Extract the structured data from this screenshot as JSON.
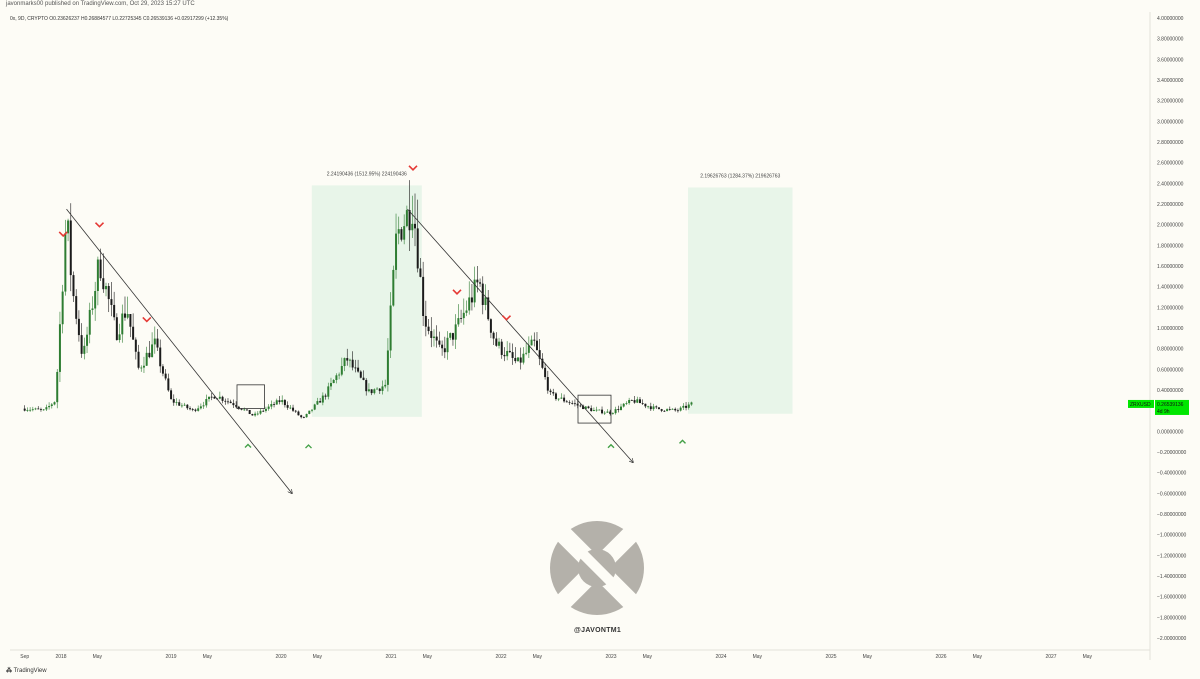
{
  "header": {
    "published": "javonmarks00 published on TradingView.com, Oct 29, 2023 15:27 UTC",
    "legend": "0x, 9D, CRYPTO  O0.23626237  H0.26884577  L0.22725345  C0.26539136  +0.02917299 (+12.35%)"
  },
  "footer": {
    "brand": "TradingView"
  },
  "watermark": {
    "handle": "@JAVONTM1"
  },
  "colors": {
    "up": "#2e7d32",
    "down": "#1b1b1b",
    "marker_down": "#e53935",
    "marker_up": "#43a047",
    "projection_fill": "#e8f5e9",
    "price_tag": "#00e600"
  },
  "chart_data": {
    "type": "candlestick",
    "title": "",
    "xlabel": "",
    "ylabel": "",
    "ylim": [
      -2.0,
      4.0
    ],
    "grid": false,
    "y_ticks": [
      "4.00000000",
      "3.80000000",
      "3.60000000",
      "3.40000000",
      "3.20000000",
      "3.00000000",
      "2.80000000",
      "2.60000000",
      "2.40000000",
      "2.20000000",
      "2.00000000",
      "1.80000000",
      "1.60000000",
      "1.40000000",
      "1.20000000",
      "1.00000000",
      "0.80000000",
      "0.60000000",
      "0.40000000",
      "0.20000000",
      "0.00000000",
      "−0.20000000",
      "−0.40000000",
      "−0.60000000",
      "−0.80000000",
      "−1.00000000",
      "−1.20000000",
      "−1.40000000",
      "−1.60000000",
      "−1.80000000",
      "−2.00000000"
    ],
    "x_ticks": [
      {
        "label": "Sep",
        "t": 2017.67
      },
      {
        "label": "2018",
        "t": 2018.0
      },
      {
        "label": "May",
        "t": 2018.33
      },
      {
        "label": "2019",
        "t": 2019.0
      },
      {
        "label": "May",
        "t": 2019.33
      },
      {
        "label": "2020",
        "t": 2020.0
      },
      {
        "label": "May",
        "t": 2020.33
      },
      {
        "label": "2021",
        "t": 2021.0
      },
      {
        "label": "May",
        "t": 2021.33
      },
      {
        "label": "2022",
        "t": 2022.0
      },
      {
        "label": "May",
        "t": 2022.33
      },
      {
        "label": "2023",
        "t": 2023.0
      },
      {
        "label": "May",
        "t": 2023.33
      },
      {
        "label": "2024",
        "t": 2024.0
      },
      {
        "label": "May",
        "t": 2024.33
      },
      {
        "label": "2025",
        "t": 2025.0
      },
      {
        "label": "May",
        "t": 2025.33
      },
      {
        "label": "2026",
        "t": 2026.0
      },
      {
        "label": "May",
        "t": 2026.33
      },
      {
        "label": "2027",
        "t": 2027.0
      },
      {
        "label": "May",
        "t": 2027.33
      }
    ],
    "price_path": [
      {
        "t": 2017.67,
        "p": 0.22
      },
      {
        "t": 2017.85,
        "p": 0.2
      },
      {
        "t": 2017.95,
        "p": 0.3
      },
      {
        "t": 2018.05,
        "p": 2.1
      },
      {
        "t": 2018.1,
        "p": 1.4
      },
      {
        "t": 2018.2,
        "p": 0.7
      },
      {
        "t": 2018.35,
        "p": 1.65
      },
      {
        "t": 2018.5,
        "p": 0.95
      },
      {
        "t": 2018.6,
        "p": 1.2
      },
      {
        "t": 2018.7,
        "p": 0.6
      },
      {
        "t": 2018.85,
        "p": 0.85
      },
      {
        "t": 2019.0,
        "p": 0.3
      },
      {
        "t": 2019.2,
        "p": 0.2
      },
      {
        "t": 2019.4,
        "p": 0.35
      },
      {
        "t": 2019.6,
        "p": 0.25
      },
      {
        "t": 2019.75,
        "p": 0.15
      },
      {
        "t": 2020.0,
        "p": 0.3
      },
      {
        "t": 2020.2,
        "p": 0.12
      },
      {
        "t": 2020.4,
        "p": 0.35
      },
      {
        "t": 2020.6,
        "p": 0.7
      },
      {
        "t": 2020.8,
        "p": 0.38
      },
      {
        "t": 2020.95,
        "p": 0.45
      },
      {
        "t": 2021.05,
        "p": 1.9
      },
      {
        "t": 2021.2,
        "p": 2.2
      },
      {
        "t": 2021.3,
        "p": 1.1
      },
      {
        "t": 2021.45,
        "p": 0.75
      },
      {
        "t": 2021.6,
        "p": 1.0
      },
      {
        "t": 2021.8,
        "p": 1.45
      },
      {
        "t": 2021.95,
        "p": 0.85
      },
      {
        "t": 2022.15,
        "p": 0.65
      },
      {
        "t": 2022.3,
        "p": 0.85
      },
      {
        "t": 2022.45,
        "p": 0.35
      },
      {
        "t": 2022.7,
        "p": 0.25
      },
      {
        "t": 2022.85,
        "p": 0.2
      },
      {
        "t": 2023.0,
        "p": 0.18
      },
      {
        "t": 2023.2,
        "p": 0.3
      },
      {
        "t": 2023.4,
        "p": 0.22
      },
      {
        "t": 2023.6,
        "p": 0.2
      },
      {
        "t": 2023.75,
        "p": 0.27
      }
    ],
    "markers_down": [
      2018.02,
      2018.35,
      2018.78,
      2021.2,
      2021.6,
      2022.05
    ],
    "markers_up": [
      2019.7,
      2020.25,
      2023.0,
      2023.65
    ],
    "trendlines": [
      {
        "t1": 2018.05,
        "p1": 2.15,
        "t2": 2020.1,
        "p2": -0.6
      },
      {
        "t1": 2021.15,
        "p1": 2.15,
        "t2": 2023.2,
        "p2": -0.3
      }
    ],
    "boxes": [
      {
        "t1": 2019.6,
        "t2": 2019.85,
        "p1": 0.45,
        "p2": 0.22
      },
      {
        "t1": 2022.7,
        "t2": 2023.0,
        "p1": 0.35,
        "p2": 0.08
      }
    ],
    "projections": [
      {
        "t1": 2020.28,
        "t2": 2021.28,
        "p_low": 0.14,
        "p_high": 2.38,
        "label": "2.24190436 (1512.95%) 224190436"
      },
      {
        "t1": 2023.7,
        "t2": 2024.65,
        "p_low": 0.17,
        "p_high": 2.36,
        "label": "2.19626763 (1284.37%) 219626763"
      }
    ],
    "current": {
      "symbol": "ZRXUSD",
      "price": "0.26539136",
      "countdown": "4d 9h",
      "p": 0.265
    }
  }
}
